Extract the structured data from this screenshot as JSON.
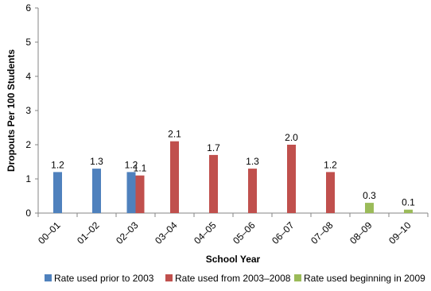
{
  "chart_data": {
    "type": "bar",
    "title": "",
    "xlabel": "School Year",
    "ylabel": "Dropouts Per 100 Students",
    "ylim": [
      0,
      6
    ],
    "yticks": [
      0,
      1,
      2,
      3,
      4,
      5,
      6
    ],
    "grid": false,
    "legend_position": "bottom",
    "categories": [
      "00–01",
      "01–02",
      "02–03",
      "03–04",
      "04–05",
      "05–06",
      "06–07",
      "07–08",
      "08–09",
      "09–10"
    ],
    "series": [
      {
        "name": "Rate used prior to 2003",
        "color": "#4f81bd",
        "values": [
          1.2,
          1.3,
          1.2,
          null,
          null,
          null,
          null,
          null,
          null,
          null
        ],
        "labels": [
          "1.2",
          "1.3",
          "1.2",
          null,
          null,
          null,
          null,
          null,
          null,
          null
        ]
      },
      {
        "name": "Rate used from 2003–2008",
        "color": "#c0504d",
        "values": [
          null,
          null,
          1.1,
          2.1,
          1.7,
          1.3,
          2.0,
          1.2,
          null,
          null
        ],
        "labels": [
          null,
          null,
          "1.1",
          "2.1",
          "1.7",
          "1.3",
          "2.0",
          "1.2",
          null,
          null
        ]
      },
      {
        "name": "Rate used beginning in 2009",
        "color": "#9bbb59",
        "values": [
          null,
          null,
          null,
          null,
          null,
          null,
          null,
          null,
          0.3,
          0.1
        ],
        "labels": [
          null,
          null,
          null,
          null,
          null,
          null,
          null,
          null,
          "0.3",
          "0.1"
        ]
      }
    ]
  }
}
